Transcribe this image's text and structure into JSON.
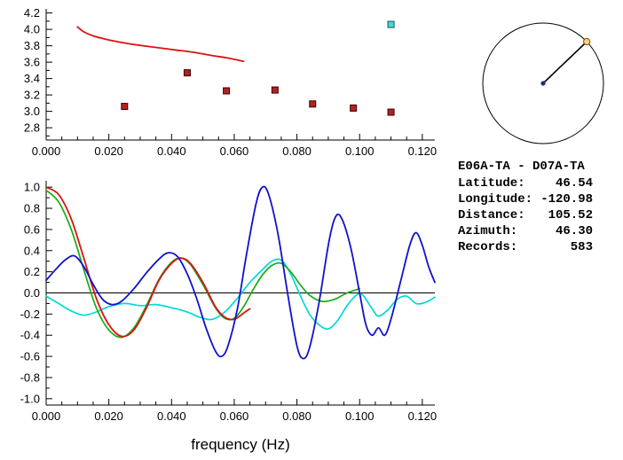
{
  "window": {
    "background": "#ffffff"
  },
  "station_info": {
    "title": "E06A-TA - D07A-TA",
    "rows": [
      {
        "label": "Latitude:",
        "value": "46.54"
      },
      {
        "label": "Longitude:",
        "value": "-120.98"
      },
      {
        "label": "Distance:",
        "value": "105.52"
      },
      {
        "label": "Azimuth:",
        "value": "46.30"
      },
      {
        "label": "Records:",
        "value": "583"
      }
    ]
  },
  "compass": {
    "azimuth_deg": 46.3,
    "circle_color": "#000000",
    "line_color": "#000000",
    "center_dot_color": "#1a2e8c",
    "marker_fill": "#ffd27f",
    "marker_edge": "#7a4a00"
  },
  "chart_data": [
    {
      "type": "line",
      "title": "",
      "xlabel": "",
      "ylabel": "",
      "xlim": [
        0,
        0.124
      ],
      "ylim": [
        2.65,
        4.25
      ],
      "xticks": [
        0,
        0.02,
        0.04,
        0.06,
        0.08,
        0.1,
        0.12
      ],
      "xtick_labels": [
        "0.000",
        "0.020",
        "0.040",
        "0.060",
        "0.080",
        "0.100",
        "0.120"
      ],
      "yticks": [
        2.8,
        3.0,
        3.2,
        3.4,
        3.6,
        3.8,
        4.0,
        4.2
      ],
      "ytick_labels": [
        "2.8",
        "3.0",
        "3.2",
        "3.4",
        "3.6",
        "3.8",
        "4.0",
        "4.2"
      ],
      "x_minor_step": 0.005,
      "y_minor_step": 0.1,
      "zero_line": false,
      "grid": false,
      "series": [
        {
          "name": "velocity-dispersion-curve",
          "kind": "line",
          "color": "#dd1111",
          "width": 1.8,
          "points": [
            [
              0.01,
              4.03
            ],
            [
              0.012,
              3.97
            ],
            [
              0.015,
              3.92
            ],
            [
              0.019,
              3.88
            ],
            [
              0.024,
              3.84
            ],
            [
              0.029,
              3.81
            ],
            [
              0.035,
              3.78
            ],
            [
              0.041,
              3.75
            ],
            [
              0.047,
              3.72
            ],
            [
              0.053,
              3.68
            ],
            [
              0.058,
              3.65
            ],
            [
              0.063,
              3.61
            ]
          ]
        },
        {
          "name": "velocity-pick-square",
          "kind": "squares",
          "color": "#b22222",
          "edge": "#400000",
          "points": [
            [
              0.025,
              3.06
            ],
            [
              0.045,
              3.47
            ],
            [
              0.0575,
              3.25
            ],
            [
              0.073,
              3.26
            ],
            [
              0.085,
              3.09
            ],
            [
              0.098,
              3.04
            ],
            [
              0.11,
              2.99
            ]
          ]
        },
        {
          "name": "highlighted-pick-square",
          "kind": "squares",
          "color": "#45d8d8",
          "edge": "#0a5a5a",
          "points": [
            [
              0.11,
              4.06
            ]
          ]
        }
      ]
    },
    {
      "type": "line",
      "title": "",
      "xlabel": "frequency (Hz)",
      "ylabel": "",
      "xlim": [
        0,
        0.124
      ],
      "ylim": [
        -1.06,
        1.06
      ],
      "xticks": [
        0,
        0.02,
        0.04,
        0.06,
        0.08,
        0.1,
        0.12
      ],
      "xtick_labels": [
        "0.000",
        "0.020",
        "0.040",
        "0.060",
        "0.080",
        "0.100",
        "0.120"
      ],
      "yticks": [
        -1.0,
        -0.8,
        -0.6,
        -0.4,
        -0.2,
        0.0,
        0.2,
        0.4,
        0.6,
        0.8,
        1.0
      ],
      "ytick_labels": [
        "-1.0",
        "-0.8",
        "-0.6",
        "-0.4",
        "-0.2",
        "0.0",
        "0.2",
        "0.4",
        "0.6",
        "0.8",
        "1.0"
      ],
      "x_minor_step": 0.005,
      "y_minor_step": 0.1,
      "zero_line": true,
      "grid": false,
      "series": [
        {
          "name": "spectrum-series-cyan",
          "kind": "line",
          "color": "#00d8d8",
          "width": 1.7,
          "points": [
            [
              0.0,
              -0.03
            ],
            [
              0.004,
              -0.1
            ],
            [
              0.008,
              -0.17
            ],
            [
              0.012,
              -0.21
            ],
            [
              0.016,
              -0.18
            ],
            [
              0.02,
              -0.13
            ],
            [
              0.025,
              -0.1
            ],
            [
              0.03,
              -0.12
            ],
            [
              0.035,
              -0.11
            ],
            [
              0.04,
              -0.14
            ],
            [
              0.045,
              -0.18
            ],
            [
              0.049,
              -0.23
            ],
            [
              0.053,
              -0.25
            ],
            [
              0.057,
              -0.18
            ],
            [
              0.061,
              -0.05
            ],
            [
              0.065,
              0.1
            ],
            [
              0.069,
              0.22
            ],
            [
              0.072,
              0.3
            ],
            [
              0.075,
              0.31
            ],
            [
              0.078,
              0.18
            ],
            [
              0.081,
              -0.02
            ],
            [
              0.084,
              -0.2
            ],
            [
              0.087,
              -0.3
            ],
            [
              0.09,
              -0.34
            ],
            [
              0.093,
              -0.26
            ],
            [
              0.096,
              -0.12
            ],
            [
              0.099,
              -0.02
            ],
            [
              0.101,
              -0.02
            ],
            [
              0.104,
              -0.15
            ],
            [
              0.106,
              -0.22
            ],
            [
              0.109,
              -0.16
            ],
            [
              0.112,
              -0.06
            ],
            [
              0.115,
              -0.03
            ],
            [
              0.118,
              -0.1
            ],
            [
              0.121,
              -0.09
            ],
            [
              0.124,
              -0.04
            ]
          ]
        },
        {
          "name": "spectrum-series-green",
          "kind": "line",
          "color": "#15ad15",
          "width": 1.7,
          "points": [
            [
              0.0,
              0.97
            ],
            [
              0.004,
              0.86
            ],
            [
              0.008,
              0.6
            ],
            [
              0.012,
              0.22
            ],
            [
              0.016,
              -0.14
            ],
            [
              0.02,
              -0.35
            ],
            [
              0.024,
              -0.42
            ],
            [
              0.028,
              -0.33
            ],
            [
              0.032,
              -0.12
            ],
            [
              0.036,
              0.13
            ],
            [
              0.04,
              0.29
            ],
            [
              0.043,
              0.33
            ],
            [
              0.046,
              0.27
            ],
            [
              0.05,
              0.08
            ],
            [
              0.054,
              -0.14
            ],
            [
              0.057,
              -0.24
            ],
            [
              0.06,
              -0.24
            ],
            [
              0.063,
              -0.13
            ],
            [
              0.066,
              0.03
            ],
            [
              0.069,
              0.17
            ],
            [
              0.072,
              0.26
            ],
            [
              0.075,
              0.28
            ],
            [
              0.078,
              0.2
            ],
            [
              0.081,
              0.08
            ],
            [
              0.084,
              -0.02
            ],
            [
              0.088,
              -0.08
            ],
            [
              0.092,
              -0.06
            ],
            [
              0.096,
              0.0
            ],
            [
              0.1,
              0.04
            ]
          ]
        },
        {
          "name": "spectrum-series-red",
          "kind": "line",
          "color": "#dd1111",
          "width": 1.8,
          "points": [
            [
              0.0,
              1.0
            ],
            [
              0.004,
              0.93
            ],
            [
              0.008,
              0.7
            ],
            [
              0.012,
              0.33
            ],
            [
              0.016,
              -0.05
            ],
            [
              0.02,
              -0.3
            ],
            [
              0.024,
              -0.41
            ],
            [
              0.028,
              -0.35
            ],
            [
              0.032,
              -0.14
            ],
            [
              0.036,
              0.12
            ],
            [
              0.04,
              0.28
            ],
            [
              0.043,
              0.33
            ],
            [
              0.046,
              0.28
            ],
            [
              0.05,
              0.1
            ],
            [
              0.054,
              -0.13
            ],
            [
              0.057,
              -0.23
            ],
            [
              0.06,
              -0.25
            ],
            [
              0.063,
              -0.19
            ],
            [
              0.065,
              -0.15
            ]
          ]
        },
        {
          "name": "spectrum-series-blue",
          "kind": "line",
          "color": "#1111cc",
          "width": 1.8,
          "points": [
            [
              0.0,
              0.12
            ],
            [
              0.003,
              0.22
            ],
            [
              0.006,
              0.31
            ],
            [
              0.009,
              0.35
            ],
            [
              0.012,
              0.25
            ],
            [
              0.015,
              0.08
            ],
            [
              0.018,
              -0.06
            ],
            [
              0.021,
              -0.11
            ],
            [
              0.024,
              -0.08
            ],
            [
              0.028,
              0.04
            ],
            [
              0.032,
              0.19
            ],
            [
              0.036,
              0.32
            ],
            [
              0.039,
              0.38
            ],
            [
              0.042,
              0.34
            ],
            [
              0.045,
              0.18
            ],
            [
              0.048,
              -0.05
            ],
            [
              0.051,
              -0.33
            ],
            [
              0.054,
              -0.55
            ],
            [
              0.056,
              -0.6
            ],
            [
              0.058,
              -0.5
            ],
            [
              0.061,
              -0.15
            ],
            [
              0.064,
              0.38
            ],
            [
              0.067,
              0.85
            ],
            [
              0.069,
              1.0
            ],
            [
              0.071,
              0.93
            ],
            [
              0.074,
              0.55
            ],
            [
              0.077,
              0.0
            ],
            [
              0.08,
              -0.5
            ],
            [
              0.082,
              -0.62
            ],
            [
              0.084,
              -0.52
            ],
            [
              0.087,
              -0.1
            ],
            [
              0.09,
              0.45
            ],
            [
              0.092,
              0.7
            ],
            [
              0.094,
              0.72
            ],
            [
              0.097,
              0.45
            ],
            [
              0.1,
              0.0
            ],
            [
              0.102,
              -0.3
            ],
            [
              0.104,
              -0.4
            ],
            [
              0.106,
              -0.33
            ],
            [
              0.108,
              -0.4
            ],
            [
              0.11,
              -0.25
            ],
            [
              0.113,
              0.1
            ],
            [
              0.116,
              0.45
            ],
            [
              0.118,
              0.57
            ],
            [
              0.12,
              0.45
            ],
            [
              0.122,
              0.25
            ],
            [
              0.124,
              0.1
            ]
          ]
        }
      ]
    }
  ]
}
